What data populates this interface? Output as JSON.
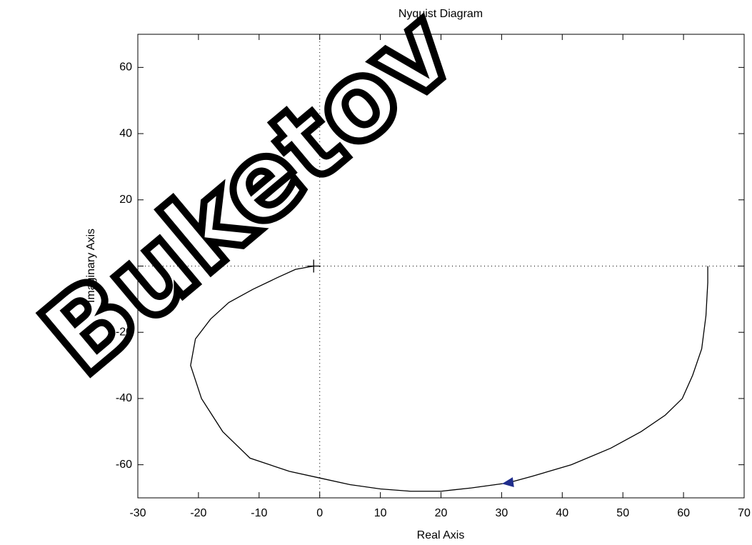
{
  "chart_data": {
    "type": "line",
    "title": "Nyquist Diagram",
    "x_label": "Real Axis",
    "y_label": "Imaginary Axis",
    "watermark": "Buketov",
    "x": [
      64,
      64,
      63.7,
      63,
      61.5,
      59.8,
      57,
      53,
      48,
      41.5,
      35,
      31,
      25,
      20,
      15,
      10,
      5,
      0,
      -5,
      -11.5,
      -16,
      -19.5,
      -21.3,
      -20.5,
      -18,
      -15,
      -11,
      -7,
      -4,
      -1
    ],
    "values": [
      0,
      -5,
      -15,
      -25,
      -33,
      -40,
      -45,
      -50,
      -55,
      -60,
      -63.5,
      -65.5,
      -67,
      -68,
      -68,
      -67.3,
      -66,
      -64,
      -62,
      -58,
      -50,
      -40,
      -30,
      -22,
      -16,
      -11,
      -7,
      -3.5,
      -1,
      0
    ],
    "color": "#000000",
    "marker_color": "#1f2d8c",
    "xlim": [
      -30,
      70
    ],
    "xticks": [
      -30,
      -20,
      -10,
      0,
      10,
      20,
      30,
      40,
      50,
      60,
      70
    ],
    "ylim": [
      -70,
      70
    ],
    "yticks": [
      -60,
      -40,
      -20,
      0,
      20,
      40,
      60
    ]
  }
}
